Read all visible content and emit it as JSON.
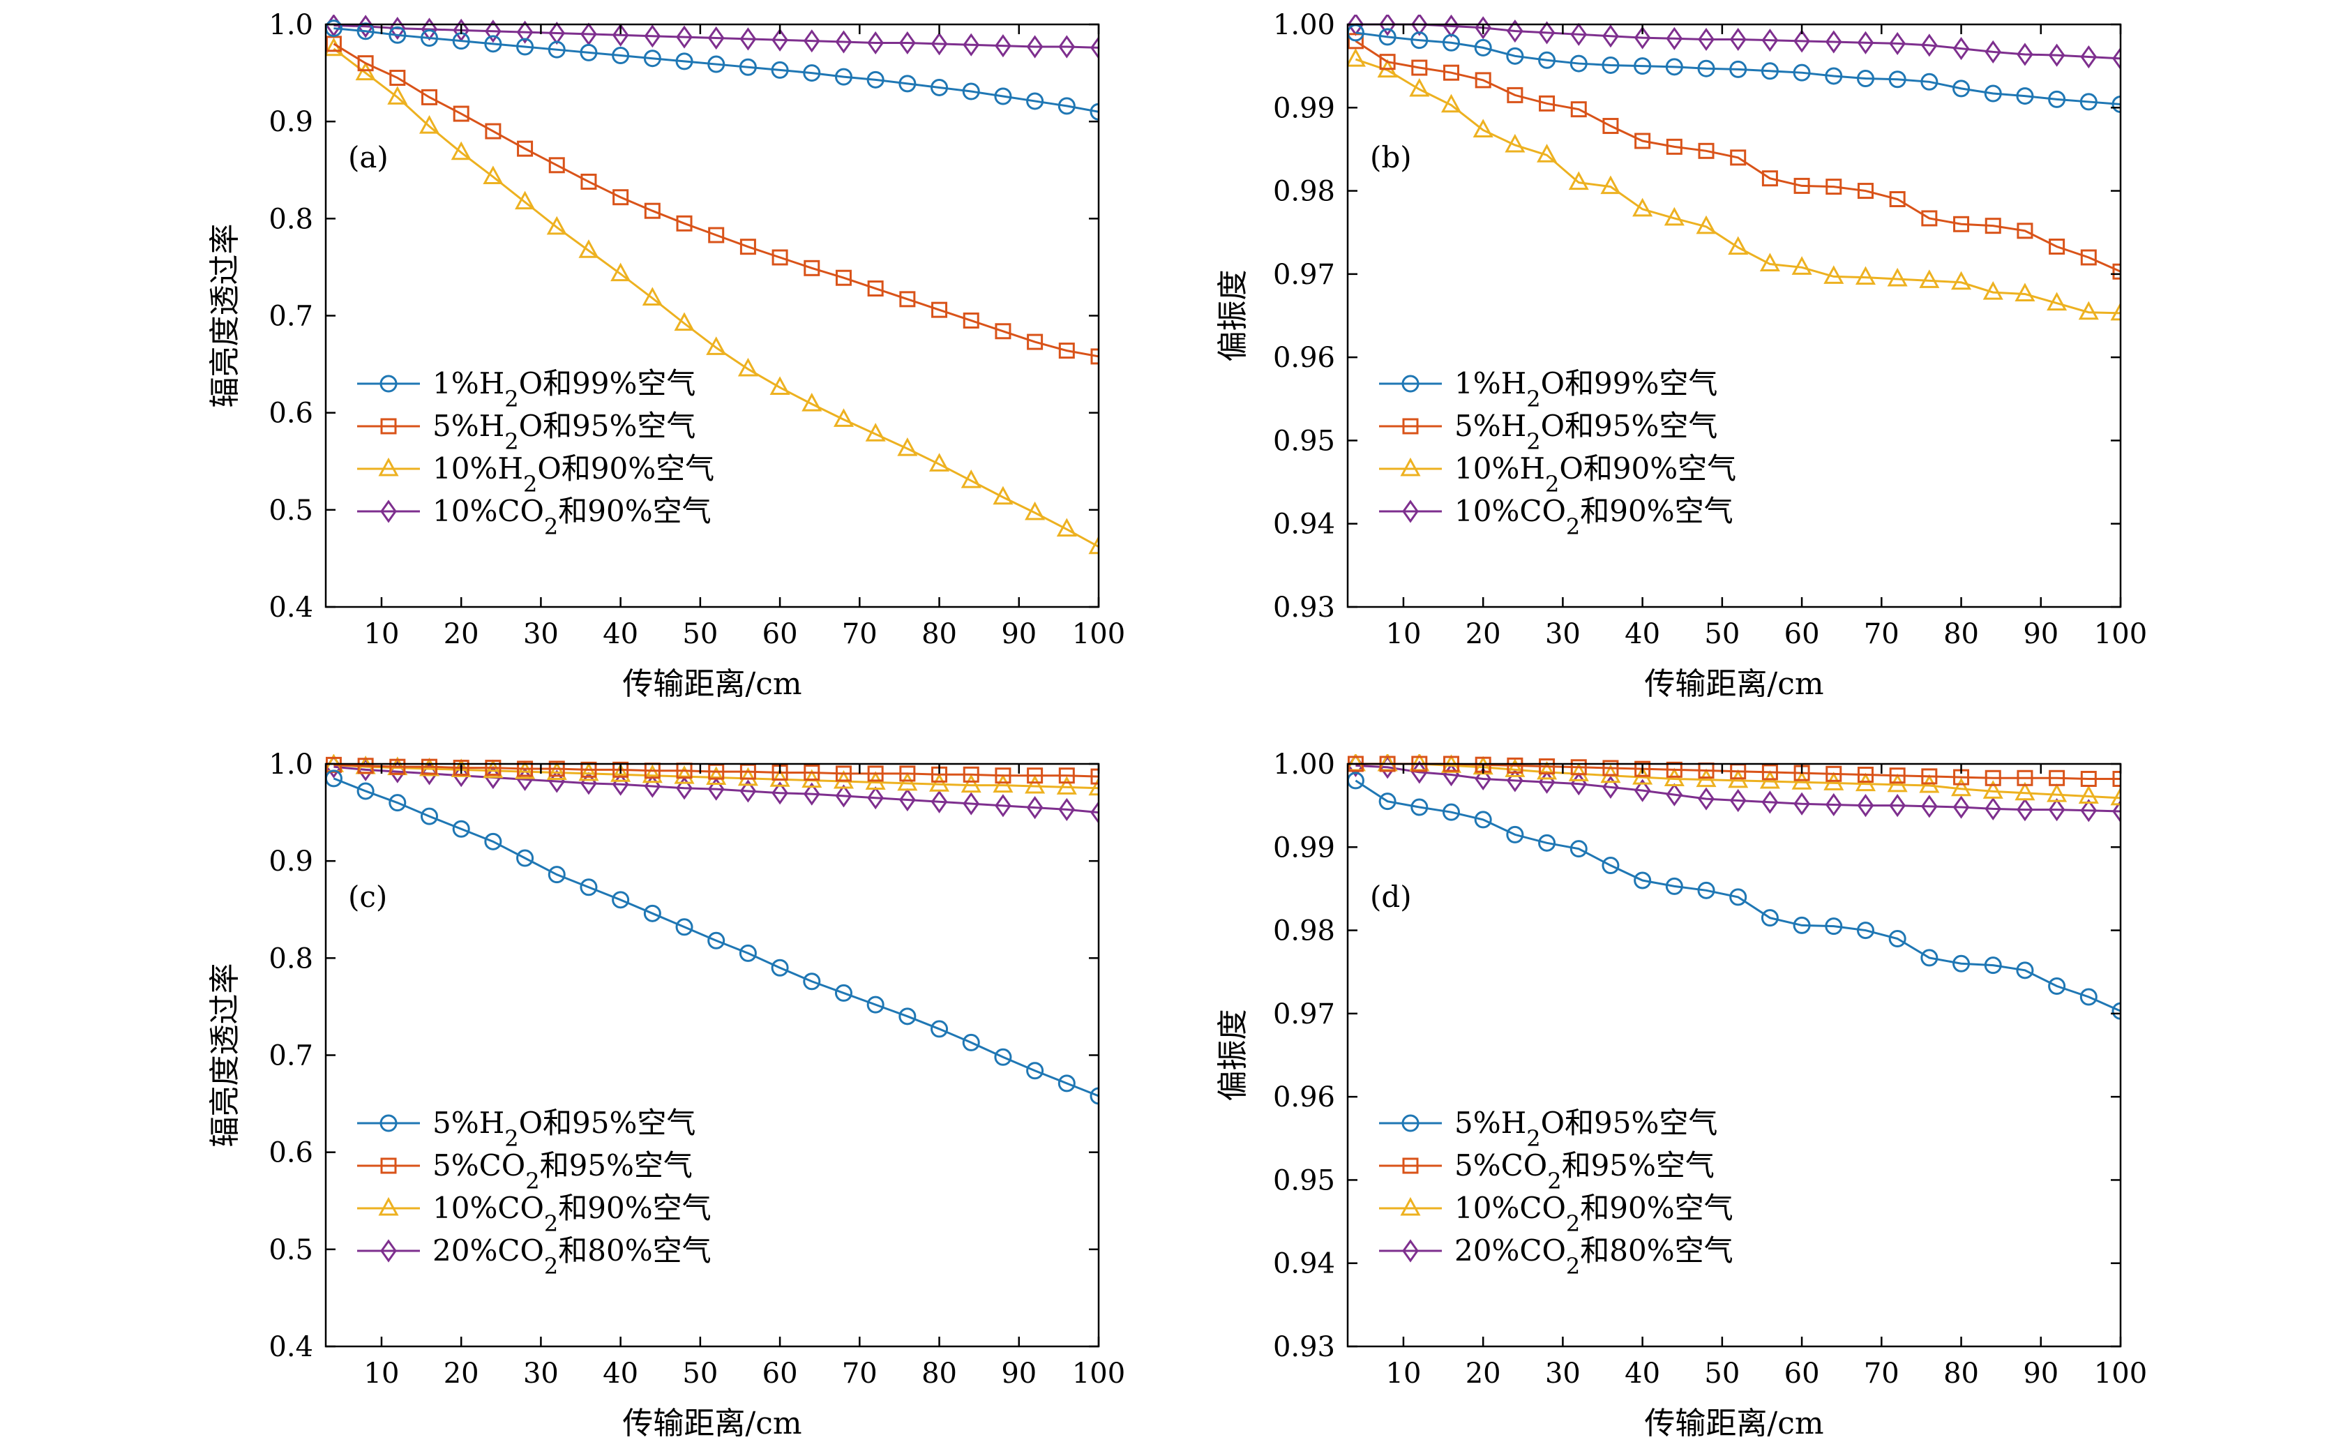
{
  "colors": {
    "blue": "#1f77b4",
    "orange": "#d95319",
    "yellow": "#edb120",
    "purple": "#7e2f8e"
  },
  "chart_data": [
    {
      "type": "line",
      "panel_label": "(a)",
      "xlabel": "传输距离/cm",
      "ylabel": "辐亮度透过率",
      "xlim": [
        3,
        100
      ],
      "ylim": [
        0.4,
        1.0
      ],
      "xticks": [
        "10",
        "20",
        "30",
        "40",
        "50",
        "60",
        "70",
        "80",
        "90",
        "100"
      ],
      "yticks": [
        "0.4",
        "0.5",
        "0.6",
        "0.7",
        "0.8",
        "0.9",
        "1.0"
      ],
      "legend_position": "bottom-left",
      "x": [
        4,
        8,
        12,
        16,
        20,
        24,
        28,
        32,
        36,
        40,
        44,
        48,
        52,
        56,
        60,
        64,
        68,
        72,
        76,
        80,
        84,
        88,
        92,
        96,
        100
      ],
      "series": [
        {
          "name": "1%H2O和99%空气",
          "color": "#1f77b4",
          "marker": "circle",
          "values": [
            0.996,
            0.993,
            0.989,
            0.986,
            0.983,
            0.98,
            0.977,
            0.974,
            0.971,
            0.968,
            0.965,
            0.962,
            0.959,
            0.956,
            0.953,
            0.95,
            0.946,
            0.943,
            0.939,
            0.935,
            0.931,
            0.926,
            0.921,
            0.916,
            0.91
          ]
        },
        {
          "name": "5%H2O和95%空气",
          "color": "#d95319",
          "marker": "square",
          "values": [
            0.98,
            0.96,
            0.945,
            0.925,
            0.908,
            0.89,
            0.872,
            0.855,
            0.838,
            0.822,
            0.808,
            0.795,
            0.783,
            0.771,
            0.76,
            0.749,
            0.739,
            0.728,
            0.717,
            0.706,
            0.695,
            0.684,
            0.673,
            0.664,
            0.658
          ]
        },
        {
          "name": "10%H2O和90%空气",
          "color": "#edb120",
          "marker": "triangle",
          "values": [
            0.975,
            0.95,
            0.925,
            0.895,
            0.868,
            0.843,
            0.817,
            0.791,
            0.767,
            0.743,
            0.718,
            0.692,
            0.667,
            0.645,
            0.626,
            0.609,
            0.593,
            0.578,
            0.563,
            0.547,
            0.53,
            0.513,
            0.497,
            0.48,
            0.462
          ]
        },
        {
          "name": "10%CO2和90%空气",
          "color": "#7e2f8e",
          "marker": "diamond",
          "values": [
            0.999,
            0.998,
            0.996,
            0.995,
            0.994,
            0.993,
            0.992,
            0.991,
            0.99,
            0.989,
            0.988,
            0.987,
            0.986,
            0.985,
            0.984,
            0.983,
            0.982,
            0.981,
            0.981,
            0.98,
            0.979,
            0.978,
            0.977,
            0.977,
            0.976
          ]
        }
      ]
    },
    {
      "type": "line",
      "panel_label": "(b)",
      "xlabel": "传输距离/cm",
      "ylabel": "偏振度",
      "xlim": [
        3,
        100
      ],
      "ylim": [
        0.93,
        1.0
      ],
      "xticks": [
        "10",
        "20",
        "30",
        "40",
        "50",
        "60",
        "70",
        "80",
        "90",
        "100"
      ],
      "yticks": [
        "0.93",
        "0.94",
        "0.95",
        "0.96",
        "0.97",
        "0.98",
        "0.99",
        "1.00"
      ],
      "legend_position": "bottom-left",
      "x": [
        4,
        8,
        12,
        16,
        20,
        24,
        28,
        32,
        36,
        40,
        44,
        48,
        52,
        56,
        60,
        64,
        68,
        72,
        76,
        80,
        84,
        88,
        92,
        96,
        100
      ],
      "series": [
        {
          "name": "1%H2O和99%空气",
          "color": "#1f77b4",
          "marker": "circle",
          "values": [
            0.999,
            0.9985,
            0.9981,
            0.9978,
            0.9972,
            0.9962,
            0.9957,
            0.9953,
            0.9951,
            0.995,
            0.9949,
            0.9947,
            0.9946,
            0.9944,
            0.9942,
            0.9938,
            0.9935,
            0.9934,
            0.9931,
            0.9923,
            0.9917,
            0.9914,
            0.991,
            0.9907,
            0.9904
          ]
        },
        {
          "name": "5%H2O和95%空气",
          "color": "#d95319",
          "marker": "square",
          "values": [
            0.998,
            0.9955,
            0.9948,
            0.9942,
            0.9933,
            0.9915,
            0.9905,
            0.9898,
            0.9878,
            0.986,
            0.9853,
            0.9848,
            0.984,
            0.9815,
            0.9806,
            0.9805,
            0.98,
            0.979,
            0.9767,
            0.976,
            0.9758,
            0.9752,
            0.9733,
            0.972,
            0.9703
          ]
        },
        {
          "name": "10%H2O和90%空气",
          "color": "#edb120",
          "marker": "triangle",
          "values": [
            0.9958,
            0.9945,
            0.9922,
            0.9903,
            0.9873,
            0.9855,
            0.9843,
            0.981,
            0.9805,
            0.9778,
            0.9767,
            0.9757,
            0.9732,
            0.9712,
            0.9708,
            0.9697,
            0.9696,
            0.9694,
            0.9692,
            0.969,
            0.9678,
            0.9676,
            0.9665,
            0.9654,
            0.9653
          ]
        },
        {
          "name": "10%CO2和90%空气",
          "color": "#7e2f8e",
          "marker": "diamond",
          "values": [
            1.0,
            1.0,
            1.0,
            0.9998,
            0.9996,
            0.9992,
            0.999,
            0.9988,
            0.9986,
            0.9984,
            0.9983,
            0.9982,
            0.9982,
            0.9981,
            0.998,
            0.9979,
            0.9978,
            0.9977,
            0.9975,
            0.9971,
            0.9967,
            0.9964,
            0.9963,
            0.9961,
            0.9959
          ]
        }
      ]
    },
    {
      "type": "line",
      "panel_label": "(c)",
      "xlabel": "传输距离/cm",
      "ylabel": "辐亮度透过率",
      "xlim": [
        3,
        100
      ],
      "ylim": [
        0.4,
        1.0
      ],
      "xticks": [
        "10",
        "20",
        "30",
        "40",
        "50",
        "60",
        "70",
        "80",
        "90",
        "100"
      ],
      "yticks": [
        "0.4",
        "0.5",
        "0.6",
        "0.7",
        "0.8",
        "0.9",
        "1.0"
      ],
      "legend_position": "bottom-left",
      "x": [
        4,
        8,
        12,
        16,
        20,
        24,
        28,
        32,
        36,
        40,
        44,
        48,
        52,
        56,
        60,
        64,
        68,
        72,
        76,
        80,
        84,
        88,
        92,
        96,
        100
      ],
      "series": [
        {
          "name": "5%H2O和95%空气",
          "color": "#1f77b4",
          "marker": "circle",
          "values": [
            0.985,
            0.972,
            0.96,
            0.946,
            0.933,
            0.92,
            0.903,
            0.886,
            0.873,
            0.86,
            0.846,
            0.832,
            0.818,
            0.805,
            0.79,
            0.776,
            0.764,
            0.752,
            0.74,
            0.727,
            0.713,
            0.698,
            0.684,
            0.671,
            0.658
          ]
        },
        {
          "name": "5%CO2和95%空气",
          "color": "#d95319",
          "marker": "square",
          "values": [
            0.999,
            0.998,
            0.997,
            0.997,
            0.996,
            0.996,
            0.995,
            0.995,
            0.994,
            0.994,
            0.993,
            0.993,
            0.992,
            0.992,
            0.991,
            0.991,
            0.99,
            0.99,
            0.99,
            0.989,
            0.989,
            0.988,
            0.988,
            0.988,
            0.987
          ]
        },
        {
          "name": "10%CO2和90%空气",
          "color": "#edb120",
          "marker": "triangle",
          "values": [
            0.999,
            0.997,
            0.996,
            0.995,
            0.994,
            0.993,
            0.992,
            0.991,
            0.99,
            0.989,
            0.988,
            0.987,
            0.986,
            0.985,
            0.984,
            0.983,
            0.982,
            0.981,
            0.98,
            0.979,
            0.978,
            0.978,
            0.977,
            0.976,
            0.975
          ]
        },
        {
          "name": "20%CO2和80%空气",
          "color": "#7e2f8e",
          "marker": "diamond",
          "values": [
            0.997,
            0.994,
            0.992,
            0.99,
            0.988,
            0.986,
            0.984,
            0.982,
            0.98,
            0.979,
            0.977,
            0.975,
            0.974,
            0.972,
            0.97,
            0.969,
            0.967,
            0.965,
            0.963,
            0.961,
            0.959,
            0.957,
            0.955,
            0.953,
            0.95
          ]
        }
      ]
    },
    {
      "type": "line",
      "panel_label": "(d)",
      "xlabel": "传输距离/cm",
      "ylabel": "偏振度",
      "xlim": [
        3,
        100
      ],
      "ylim": [
        0.93,
        1.0
      ],
      "xticks": [
        "10",
        "20",
        "30",
        "40",
        "50",
        "60",
        "70",
        "80",
        "90",
        "100"
      ],
      "yticks": [
        "0.93",
        "0.94",
        "0.95",
        "0.96",
        "0.97",
        "0.98",
        "0.99",
        "1.00"
      ],
      "legend_position": "bottom-left",
      "x": [
        4,
        8,
        12,
        16,
        20,
        24,
        28,
        32,
        36,
        40,
        44,
        48,
        52,
        56,
        60,
        64,
        68,
        72,
        76,
        80,
        84,
        88,
        92,
        96,
        100
      ],
      "series": [
        {
          "name": "5%H2O和95%空气",
          "color": "#1f77b4",
          "marker": "circle",
          "values": [
            0.998,
            0.9955,
            0.9948,
            0.9942,
            0.9933,
            0.9915,
            0.9905,
            0.9898,
            0.9878,
            0.986,
            0.9853,
            0.9848,
            0.984,
            0.9815,
            0.9806,
            0.9805,
            0.98,
            0.979,
            0.9767,
            0.976,
            0.9758,
            0.9752,
            0.9733,
            0.972,
            0.9703
          ]
        },
        {
          "name": "5%CO2和95%空气",
          "color": "#d95319",
          "marker": "square",
          "values": [
            1.0,
            1.0,
            1.0,
            1.0,
            0.9999,
            0.9998,
            0.9997,
            0.9996,
            0.9995,
            0.9994,
            0.9993,
            0.9992,
            0.9991,
            0.999,
            0.9989,
            0.9988,
            0.9987,
            0.9986,
            0.9985,
            0.9984,
            0.9983,
            0.9983,
            0.9983,
            0.9982,
            0.9982
          ]
        },
        {
          "name": "10%CO2和90%空气",
          "color": "#edb120",
          "marker": "triangle",
          "values": [
            1.0,
            1.0,
            1.0,
            0.9998,
            0.9996,
            0.9993,
            0.999,
            0.9988,
            0.9986,
            0.9984,
            0.9982,
            0.9981,
            0.998,
            0.9979,
            0.9978,
            0.9977,
            0.9976,
            0.9975,
            0.9974,
            0.997,
            0.9967,
            0.9965,
            0.9963,
            0.9961,
            0.9959
          ]
        },
        {
          "name": "20%CO2和80%空气",
          "color": "#7e2f8e",
          "marker": "diamond",
          "values": [
            0.9998,
            0.9996,
            0.999,
            0.9987,
            0.9982,
            0.998,
            0.9978,
            0.9976,
            0.9972,
            0.9968,
            0.9963,
            0.9958,
            0.9956,
            0.9954,
            0.9952,
            0.9951,
            0.995,
            0.995,
            0.9949,
            0.9948,
            0.9946,
            0.9945,
            0.9945,
            0.9944,
            0.9943
          ]
        }
      ]
    }
  ]
}
